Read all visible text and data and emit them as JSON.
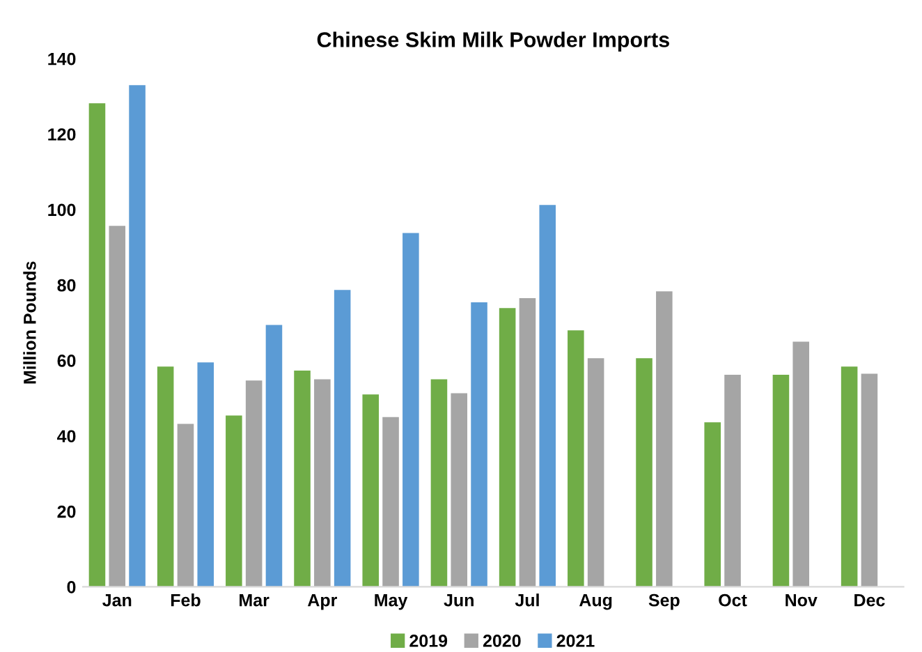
{
  "chart_data": {
    "type": "bar",
    "title": "Chinese Skim Milk Powder Imports",
    "ylabel": "Million Pounds",
    "categories": [
      "Jan",
      "Feb",
      "Mar",
      "Apr",
      "May",
      "Jun",
      "Jul",
      "Aug",
      "Sep",
      "Oct",
      "Nov",
      "Dec"
    ],
    "series": [
      {
        "name": "2019",
        "color": "#70ad47",
        "values": [
          128.2,
          58.4,
          45.4,
          57.3,
          51,
          55,
          73.9,
          68,
          60.6,
          43.6,
          56.2,
          58.4
        ]
      },
      {
        "name": "2020",
        "color": "#a5a5a5",
        "values": [
          95.7,
          43.2,
          54.7,
          55,
          45,
          51.3,
          76.5,
          60.6,
          78.3,
          56.2,
          65,
          56.5
        ]
      },
      {
        "name": "2021",
        "color": "#5b9bd5",
        "values": [
          133,
          59.5,
          69.4,
          78.7,
          93.8,
          75.4,
          101.2,
          null,
          null,
          null,
          null,
          null
        ]
      }
    ],
    "ylim": [
      0,
      140
    ],
    "yticks": [
      0,
      20,
      40,
      60,
      80,
      100,
      120,
      140
    ],
    "grid": false,
    "legend": "bottom"
  }
}
